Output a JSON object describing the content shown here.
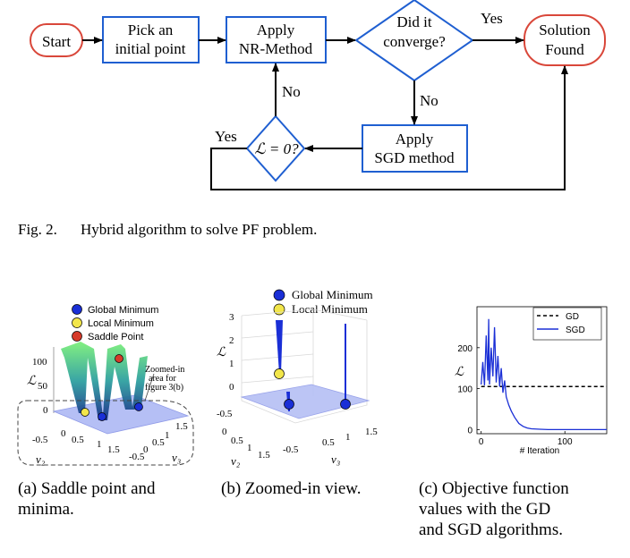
{
  "flowchart": {
    "start": "Start",
    "pick_line1": "Pick an",
    "pick_line2": "initial point",
    "apply_nr_line1": "Apply",
    "apply_nr_line2": "NR-Method",
    "converge_line1": "Did it",
    "converge_line2": "converge?",
    "solution_line1": "Solution",
    "solution_line2": "Found",
    "apply_sgd_line1": "Apply",
    "apply_sgd_line2": "SGD method",
    "loss_check": "ℒ = 0?",
    "yes_top": "Yes",
    "no_down": "No",
    "no_up": "No",
    "yes_left": "Yes",
    "border_color": "#1f5fd1",
    "terminal_color": "#d9473a"
  },
  "fig2_caption": {
    "number": "Fig. 2.",
    "text": "Hybrid algorithm to solve PF problem."
  },
  "subfig_a": {
    "legend": [
      "Global Minimum",
      "Local Minimum",
      "Saddle Point"
    ],
    "legend_colors": [
      "#1a2fd6",
      "#f2e64a",
      "#d63a2a"
    ],
    "zaxis": "ℒ",
    "zticks": [
      "100",
      "50",
      "0"
    ],
    "x_label": "v₂",
    "y_label": "v₃",
    "xticks": [
      "-0.5",
      "0",
      "0.5",
      "1",
      "1.5"
    ],
    "yticks": [
      "1.5",
      "1",
      "0.5",
      "0",
      "-0.5"
    ],
    "annotation_line1": "Zoomed-in",
    "annotation_line2": "area for",
    "annotation_line3": "figure 3(b)",
    "caption_line1": "(a) Saddle point and",
    "caption_line2": "minima."
  },
  "subfig_b": {
    "legend": [
      "Global Minimum",
      "Local Minimum"
    ],
    "zaxis": "ℒ",
    "zticks": [
      "3",
      "2",
      "1",
      "0",
      "-0.5"
    ],
    "x_label": "v₂",
    "y_label": "v₃",
    "xticks": [
      "0",
      "0.5",
      "1",
      "1.5"
    ],
    "yticks": [
      "1.5",
      "1",
      "0.5",
      "-0.5"
    ],
    "caption": "(b) Zoomed-in view."
  },
  "subfig_c": {
    "caption_line1": "(c) Objective function",
    "caption_line2": "values with the GD",
    "caption_line3": "and SGD algorithms."
  },
  "chart_data": {
    "type": "line",
    "xlabel": "# Iteration",
    "ylabel": "ℒ",
    "xlim": [
      -5,
      150
    ],
    "ylim": [
      -10,
      300
    ],
    "xticks": [
      0,
      100
    ],
    "yticks": [
      0,
      100,
      200
    ],
    "legend_position": "top-right",
    "series": [
      {
        "name": "GD",
        "style": "dashed",
        "color": "#000000",
        "x": [
          0,
          150
        ],
        "y": [
          105,
          105
        ]
      },
      {
        "name": "SGD",
        "style": "solid",
        "color": "#1a2fd6",
        "x": [
          0,
          2,
          4,
          6,
          8,
          9,
          10,
          12,
          14,
          16,
          18,
          20,
          22,
          24,
          26,
          28,
          30,
          33,
          36,
          40,
          45,
          50,
          55,
          60,
          70,
          80,
          100,
          150
        ],
        "y": [
          110,
          165,
          108,
          230,
          120,
          270,
          110,
          200,
          130,
          250,
          115,
          180,
          105,
          150,
          90,
          120,
          80,
          60,
          45,
          30,
          15,
          8,
          4,
          2,
          1,
          0,
          0,
          0
        ]
      }
    ]
  }
}
